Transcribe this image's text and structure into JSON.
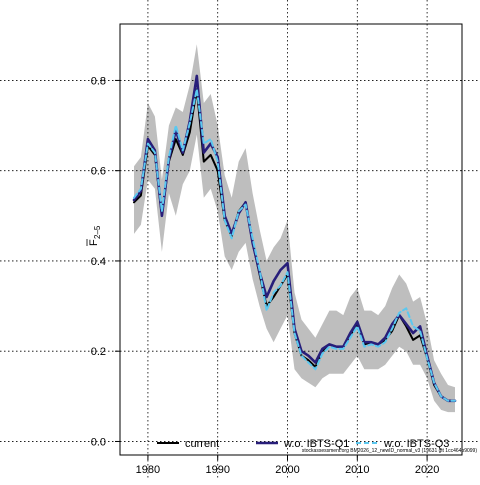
{
  "chart_data": {
    "type": "line",
    "title": "",
    "xlabel": "",
    "ylabel_main": "F",
    "ylabel_sub": "2–5",
    "xlim": [
      1976,
      2025
    ],
    "ylim": [
      -0.03,
      0.925
    ],
    "x_ticks": [
      1980,
      1990,
      2000,
      2010,
      2020
    ],
    "x_tick_labels": [
      "1980",
      "1990",
      "2000",
      "2010",
      "2020"
    ],
    "y_ticks": [
      0.0,
      0.2,
      0.4,
      0.6,
      0.8
    ],
    "y_tick_labels": [
      "0.0",
      "0.2",
      "0.4",
      "0.6",
      "0.8"
    ],
    "grid": true,
    "legend_position": "bottom",
    "footnote": "stockassessment.org BM2026_12_newID_normal_v3 (19631 git 1cc464b9099)",
    "x": [
      1978,
      1979,
      1980,
      1981,
      1982,
      1983,
      1984,
      1985,
      1986,
      1987,
      1988,
      1989,
      1990,
      1991,
      1992,
      1993,
      1994,
      1995,
      1996,
      1997,
      1998,
      1999,
      2000,
      2001,
      2002,
      2003,
      2004,
      2005,
      2006,
      2007,
      2008,
      2009,
      2010,
      2011,
      2012,
      2013,
      2014,
      2015,
      2016,
      2017,
      2018,
      2019,
      2020,
      2021,
      2022,
      2023,
      2024
    ],
    "band": {
      "color": "#bebebe",
      "lower": [
        0.46,
        0.48,
        0.58,
        0.56,
        0.42,
        0.55,
        0.5,
        0.57,
        0.6,
        0.68,
        0.54,
        0.56,
        0.51,
        0.41,
        0.38,
        0.42,
        0.44,
        0.36,
        0.3,
        0.25,
        0.22,
        0.25,
        0.28,
        0.16,
        0.14,
        0.13,
        0.12,
        0.14,
        0.15,
        0.15,
        0.15,
        0.17,
        0.19,
        0.16,
        0.16,
        0.16,
        0.17,
        0.19,
        0.21,
        0.2,
        0.17,
        0.17,
        0.14,
        0.09,
        0.07,
        0.065,
        0.065
      ],
      "upper": [
        0.61,
        0.63,
        0.75,
        0.72,
        0.58,
        0.7,
        0.74,
        0.73,
        0.79,
        0.88,
        0.75,
        0.77,
        0.7,
        0.59,
        0.54,
        0.62,
        0.65,
        0.55,
        0.47,
        0.4,
        0.43,
        0.45,
        0.49,
        0.33,
        0.27,
        0.25,
        0.23,
        0.26,
        0.29,
        0.29,
        0.28,
        0.32,
        0.34,
        0.29,
        0.29,
        0.28,
        0.3,
        0.34,
        0.37,
        0.35,
        0.31,
        0.32,
        0.26,
        0.18,
        0.15,
        0.125,
        0.12
      ]
    },
    "series": [
      {
        "name": "current",
        "color": "#000000",
        "dash": "solid",
        "width": 2,
        "values": [
          0.53,
          0.545,
          0.655,
          0.635,
          0.5,
          0.62,
          0.67,
          0.635,
          0.685,
          0.78,
          0.62,
          0.635,
          0.6,
          0.49,
          0.455,
          0.51,
          0.53,
          0.44,
          0.37,
          0.3,
          0.32,
          0.345,
          0.37,
          0.24,
          0.19,
          0.18,
          0.165,
          0.2,
          0.215,
          0.21,
          0.21,
          0.235,
          0.26,
          0.215,
          0.22,
          0.215,
          0.225,
          0.245,
          0.28,
          0.255,
          0.225,
          0.235,
          0.185,
          0.125,
          0.1,
          0.09,
          0.09
        ]
      },
      {
        "name": "w.o. IBTS-Q1",
        "color": "#281e7a",
        "dash": "solid",
        "width": 2.6,
        "values": [
          0.535,
          0.555,
          0.67,
          0.645,
          0.5,
          0.625,
          0.69,
          0.64,
          0.71,
          0.81,
          0.64,
          0.66,
          0.63,
          0.5,
          0.46,
          0.505,
          0.53,
          0.44,
          0.375,
          0.32,
          0.355,
          0.38,
          0.395,
          0.25,
          0.2,
          0.19,
          0.175,
          0.205,
          0.215,
          0.21,
          0.21,
          0.24,
          0.265,
          0.22,
          0.22,
          0.215,
          0.23,
          0.26,
          0.28,
          0.26,
          0.24,
          0.255,
          0.19,
          0.13,
          0.1,
          0.09,
          0.09
        ]
      },
      {
        "name": "w.o. IBTS-Q3",
        "color": "#5bc8f0",
        "dash": "dashed",
        "width": 2,
        "values": [
          0.54,
          0.56,
          0.66,
          0.64,
          0.51,
          0.63,
          0.7,
          0.645,
          0.705,
          0.78,
          0.66,
          0.67,
          0.62,
          0.49,
          0.45,
          0.51,
          0.525,
          0.45,
          0.38,
          0.29,
          0.33,
          0.345,
          0.375,
          0.24,
          0.19,
          0.175,
          0.16,
          0.195,
          0.21,
          0.205,
          0.205,
          0.23,
          0.255,
          0.21,
          0.215,
          0.21,
          0.22,
          0.25,
          0.285,
          0.295,
          0.255,
          0.245,
          0.185,
          0.13,
          0.1,
          0.09,
          0.09
        ]
      }
    ]
  }
}
